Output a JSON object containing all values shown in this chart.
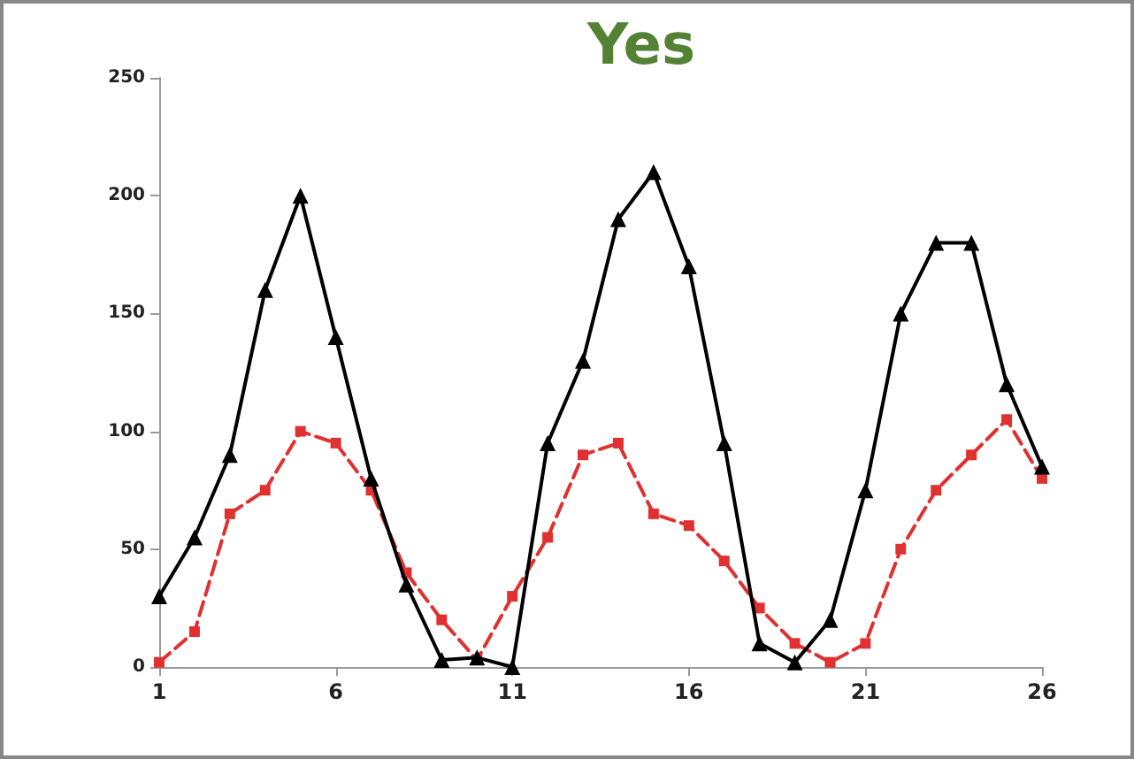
{
  "chart_data": {
    "type": "line",
    "title": "Yes",
    "x": [
      1,
      2,
      3,
      4,
      5,
      6,
      7,
      8,
      9,
      10,
      11,
      12,
      13,
      14,
      15,
      16,
      17,
      18,
      19,
      20,
      21,
      22,
      23,
      24,
      25,
      26
    ],
    "series": [
      {
        "color": "#000000",
        "marker": "triangle",
        "line_style": "solid",
        "values": [
          30,
          55,
          90,
          160,
          200,
          140,
          80,
          35,
          3,
          4,
          0,
          95,
          130,
          190,
          210,
          170,
          95,
          10,
          2,
          20,
          75,
          150,
          180,
          180,
          120,
          85
        ]
      },
      {
        "color": "#e03030",
        "marker": "square",
        "line_style": "dashed",
        "values": [
          2,
          15,
          65,
          75,
          100,
          95,
          75,
          40,
          20,
          3,
          30,
          55,
          90,
          95,
          65,
          60,
          45,
          25,
          10,
          2,
          10,
          50,
          75,
          90,
          105,
          80
        ]
      }
    ],
    "xlim": [
      1,
      26
    ],
    "xticks": [
      1,
      6,
      11,
      16,
      21,
      26
    ],
    "ylim": [
      0,
      250
    ],
    "yticks": [
      0,
      50,
      100,
      150,
      200,
      250
    ],
    "grid": false
  }
}
